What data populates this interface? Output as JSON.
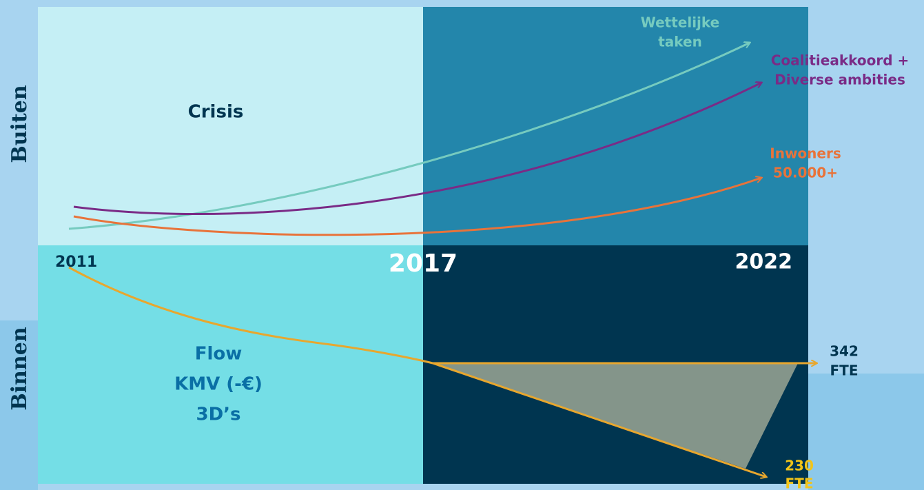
{
  "sides": {
    "top": "Buiten",
    "bottom": "Binnen"
  },
  "quadrants": {
    "crisis": "Crisis",
    "inner": [
      "Flow",
      "KMV (-€)",
      "3D’s"
    ]
  },
  "years": [
    "2011",
    "2017",
    "2022"
  ],
  "curves": {
    "wettelijke": [
      "Wettelijke",
      "taken"
    ],
    "coalitie": [
      "Coalitieakkoord +",
      "Diverse ambities"
    ],
    "inwoners": [
      "Inwoners",
      "50.000+"
    ]
  },
  "fte": {
    "high": [
      "342",
      "FTE"
    ],
    "low": [
      "230",
      "FTE"
    ]
  }
}
